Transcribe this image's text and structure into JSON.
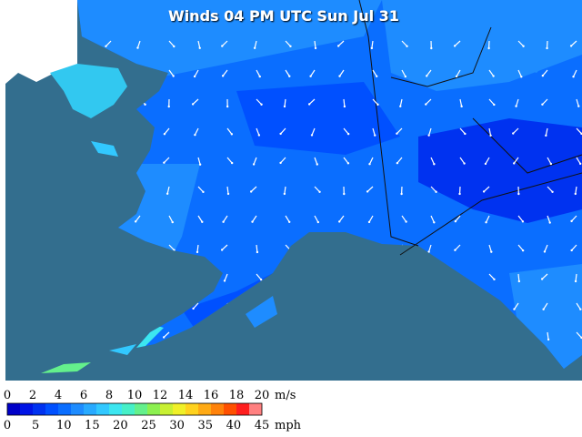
{
  "map": {
    "title": "Winds 04 PM UTC Sun Jul 31"
  },
  "legend": {
    "colors": [
      "#0000c8",
      "#0014e6",
      "#0032f0",
      "#0050ff",
      "#0a6eff",
      "#1e8cff",
      "#28aaff",
      "#32c8ff",
      "#3ce6f0",
      "#46f0c8",
      "#64f08c",
      "#8cf050",
      "#c8f032",
      "#f0f028",
      "#ffd21e",
      "#ffaa14",
      "#ff820a",
      "#ff5000",
      "#ff1e1e",
      "#ff8080"
    ],
    "ms_labels": [
      "0",
      "2",
      "4",
      "6",
      "8",
      "10",
      "12",
      "14",
      "16",
      "18",
      "20"
    ],
    "ms_unit": "m/s",
    "mph_labels": [
      "0",
      "5",
      "10",
      "15",
      "20",
      "25",
      "30",
      "35",
      "40",
      "45"
    ],
    "mph_unit": "mph"
  }
}
